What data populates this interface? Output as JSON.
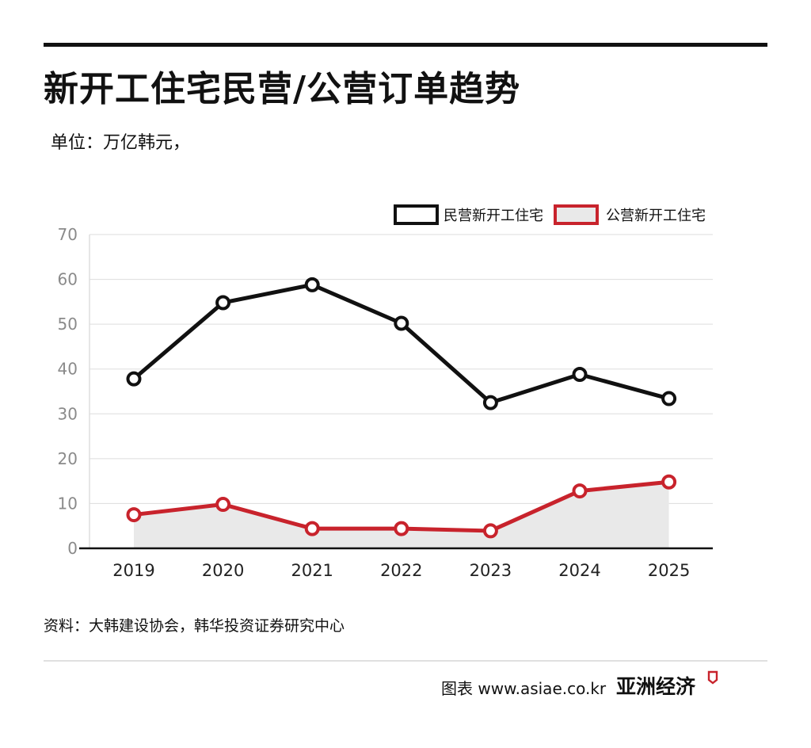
{
  "header": {
    "title": "新开工住宅民营/公营订单趋势",
    "unit": "单位：万亿韩元，"
  },
  "footer": {
    "source": "资料：大韩建设协会，韩华投资证券研究中心",
    "credit": "图表 www.asiae.co.kr",
    "brand": "亚洲经济"
  },
  "colors": {
    "private_line": "#111111",
    "public_line": "#c8232c",
    "public_fill": "#e9e9e9",
    "grid": "#dddddd",
    "tick_text": "#8a8a8a",
    "brand_mark": "#c8232c"
  },
  "chart_data": {
    "type": "line",
    "title": "",
    "xlabel": "",
    "ylabel": "",
    "categories": [
      "2019",
      "2020",
      "2021",
      "2022",
      "2023",
      "2024",
      "2025"
    ],
    "y_ticks": [
      0,
      10,
      20,
      30,
      40,
      50,
      60,
      70
    ],
    "ylim": [
      0,
      70
    ],
    "grid": true,
    "legend_position": "top-right",
    "series": [
      {
        "name": "民营新开工住宅",
        "values": [
          37.8,
          54.8,
          58.8,
          50.2,
          32.5,
          38.8,
          33.4
        ],
        "color": "#111111",
        "area": false
      },
      {
        "name": "公营新开工住宅",
        "values": [
          7.5,
          9.8,
          4.4,
          4.4,
          3.9,
          12.8,
          14.8
        ],
        "color": "#c8232c",
        "area": true
      }
    ]
  }
}
